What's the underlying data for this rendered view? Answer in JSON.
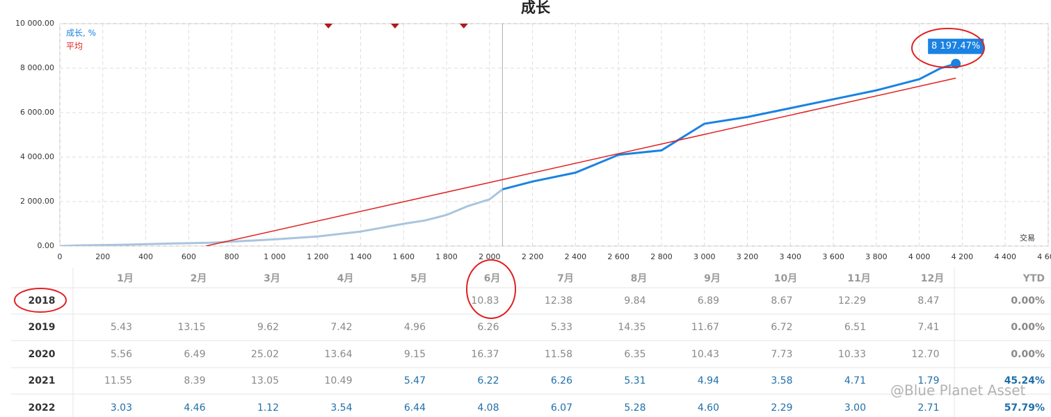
{
  "chart_data": {
    "type": "line",
    "title": "成长",
    "x_label": "交易",
    "xlim": [
      0,
      4600
    ],
    "xticks": [
      0,
      200,
      400,
      600,
      800,
      {
        "value": 1000,
        "label": "1 000"
      },
      {
        "value": 1200,
        "label": "1 200"
      },
      {
        "value": 1400,
        "label": "1 400"
      },
      {
        "value": 1600,
        "label": "1 600"
      },
      {
        "value": 1800,
        "label": "1 800"
      },
      {
        "value": 2000,
        "label": "2 000"
      },
      {
        "value": 2200,
        "label": "2 200"
      },
      {
        "value": 2400,
        "label": "2 400"
      },
      {
        "value": 2600,
        "label": "2 600"
      },
      {
        "value": 2800,
        "label": "2 800"
      },
      {
        "value": 3000,
        "label": "3 000"
      },
      {
        "value": 3200,
        "label": "3 200"
      },
      {
        "value": 3400,
        "label": "3 400"
      },
      {
        "value": 3600,
        "label": "3 600"
      },
      {
        "value": 3800,
        "label": "3 800"
      },
      {
        "value": 4000,
        "label": "4 000"
      },
      {
        "value": 4200,
        "label": "4 200"
      },
      {
        "value": 4400,
        "label": "4 400"
      },
      {
        "value": 4600,
        "label": "4 600"
      }
    ],
    "ylim": [
      0,
      10000
    ],
    "yticks": [
      {
        "value": 0,
        "label": "0.00"
      },
      {
        "value": 2000,
        "label": "2 000.00"
      },
      {
        "value": 4000,
        "label": "4 000.00"
      },
      {
        "value": 6000,
        "label": "6 000.00"
      },
      {
        "value": 8000,
        "label": "8 000.00"
      },
      {
        "value": 10000,
        "label": "10 000.00"
      }
    ],
    "grid": true,
    "vline": 2060,
    "event_markers": [
      1250,
      1560,
      1880
    ],
    "series": [
      {
        "name": "成长, %",
        "color": "#1a82e2",
        "early_color": "#a9c4de",
        "x": [
          0,
          100,
          300,
          500,
          700,
          800,
          1000,
          1200,
          1400,
          1600,
          1700,
          1800,
          1900,
          2000,
          2060,
          2200,
          2400,
          2500,
          2600,
          2800,
          2900,
          3000,
          3200,
          3400,
          3600,
          3800,
          4000,
          4100,
          4170
        ],
        "values": [
          0,
          30,
          60,
          110,
          150,
          200,
          300,
          430,
          650,
          1000,
          1150,
          1400,
          1800,
          2100,
          2550,
          2900,
          3300,
          3700,
          4100,
          4300,
          4900,
          5500,
          5800,
          6200,
          6600,
          7000,
          7500,
          8000,
          8197.47
        ],
        "value_labels": [
          null,
          null,
          null,
          null,
          null,
          null,
          null,
          null,
          null,
          null,
          null,
          null,
          null,
          null,
          null,
          null,
          null,
          null,
          null,
          null,
          null,
          null,
          null,
          null,
          null,
          null,
          null,
          null,
          "8 197.47%"
        ]
      },
      {
        "name": "平均",
        "color": "#e02020",
        "x": [
          680,
          4170
        ],
        "values": [
          0,
          7550
        ]
      }
    ]
  },
  "table": {
    "columns": [
      "1月",
      "2月",
      "3月",
      "4月",
      "5月",
      "6月",
      "7月",
      "8月",
      "9月",
      "10月",
      "11月",
      "12月",
      "YTD"
    ],
    "rows": [
      {
        "year": "2018",
        "cells": [
          null,
          null,
          null,
          null,
          null,
          "10.83",
          "12.38",
          "9.84",
          "6.89",
          "8.67",
          "12.29",
          "8.47",
          "0.00%"
        ],
        "highlight_from": null
      },
      {
        "year": "2019",
        "cells": [
          "5.43",
          "13.15",
          "9.62",
          "7.42",
          "4.96",
          "6.26",
          "5.33",
          "14.35",
          "11.67",
          "6.72",
          "6.51",
          "7.41",
          "0.00%"
        ],
        "highlight_from": null
      },
      {
        "year": "2020",
        "cells": [
          "5.56",
          "6.49",
          "25.02",
          "13.64",
          "9.15",
          "16.37",
          "11.58",
          "6.35",
          "10.43",
          "7.73",
          "10.33",
          "12.70",
          "0.00%"
        ],
        "highlight_from": null
      },
      {
        "year": "2021",
        "cells": [
          "11.55",
          "8.39",
          "13.05",
          "10.49",
          "5.47",
          "6.22",
          "6.26",
          "5.31",
          "4.94",
          "3.58",
          "4.71",
          "1.79",
          "45.24%"
        ],
        "highlight_from": 4
      },
      {
        "year": "2022",
        "cells": [
          "3.03",
          "4.46",
          "1.12",
          "3.54",
          "6.44",
          "4.08",
          "6.07",
          "5.28",
          "4.60",
          "2.29",
          "3.00",
          "2.71",
          "57.79%"
        ],
        "highlight_from": 0
      }
    ]
  },
  "watermark": "@Blue Planet Asset"
}
